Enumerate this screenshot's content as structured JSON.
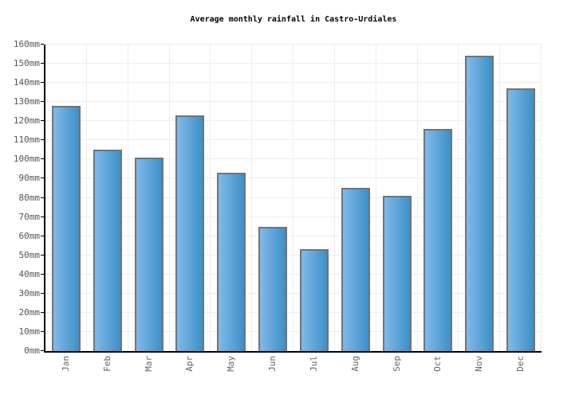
{
  "page": {
    "background": "#ffffff"
  },
  "chart_data": {
    "type": "bar",
    "title": "Average monthly rainfall in Castro-Urdiales",
    "categories": [
      "Jan",
      "Feb",
      "Mar",
      "Apr",
      "May",
      "Jun",
      "Jul",
      "Aug",
      "Sep",
      "Oct",
      "Nov",
      "Dec"
    ],
    "values": [
      128,
      105,
      101,
      123,
      93,
      65,
      53,
      85,
      81,
      116,
      154,
      137
    ],
    "unit": "mm",
    "xlabel": "",
    "ylabel": "",
    "ylim": [
      0,
      160
    ],
    "ytick_step": 10,
    "ytick_values": [
      0,
      10,
      20,
      30,
      40,
      50,
      60,
      70,
      80,
      90,
      100,
      110,
      120,
      130,
      140,
      150,
      160
    ],
    "ytick_labels": [
      "0mm",
      "10mm",
      "20mm",
      "30mm",
      "40mm",
      "50mm",
      "60mm",
      "70mm",
      "80mm",
      "90mm",
      "100mm",
      "110mm",
      "120mm",
      "130mm",
      "140mm",
      "150mm",
      "160mm"
    ],
    "grid": true,
    "legend": "none",
    "bar_orientation": "vertical",
    "x_labels_rotated_degrees": -90,
    "colors": {
      "bar_gradient_left": "#81b9ea",
      "bar_gradient_right": "#3c90c7",
      "bar_border": "#737373",
      "gridline": "#eeeeee",
      "axis": "#000000",
      "y_tick_label": "#555555",
      "x_tick_label": "#666666",
      "title": "#000000"
    }
  }
}
